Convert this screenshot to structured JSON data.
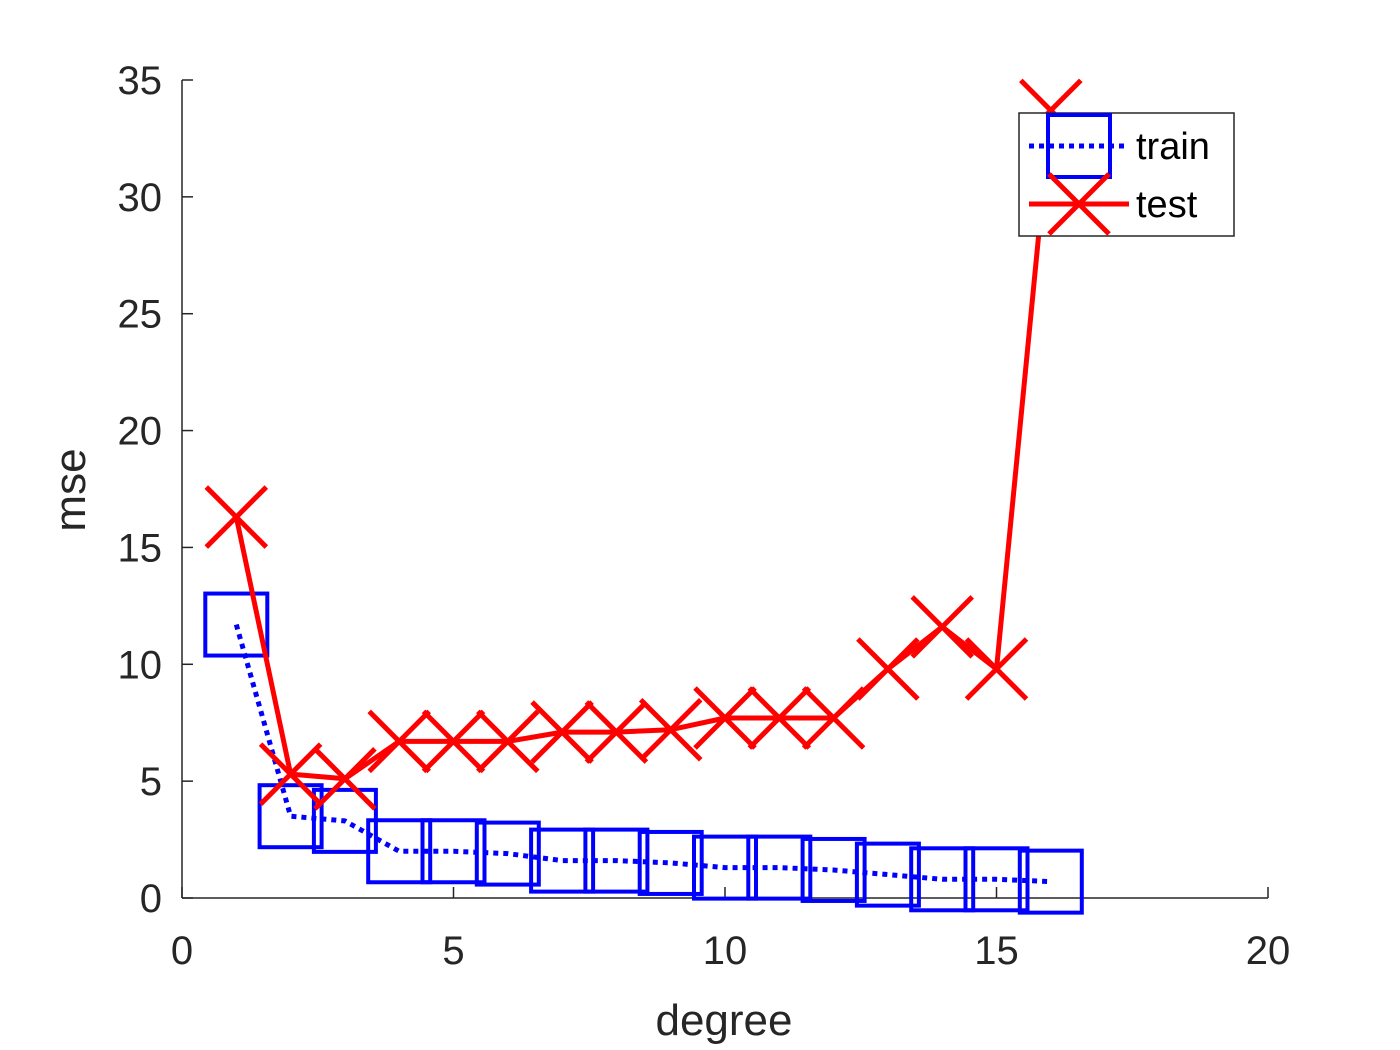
{
  "chart_data": {
    "type": "line",
    "xlabel": "degree",
    "ylabel": "mse",
    "xlim": [
      0,
      20
    ],
    "ylim": [
      0,
      35
    ],
    "xticks": [
      0,
      5,
      10,
      15,
      20
    ],
    "yticks": [
      0,
      5,
      10,
      15,
      20,
      25,
      30,
      35
    ],
    "grid": false,
    "legend_position": "top-right",
    "series": [
      {
        "name": "train",
        "color": "#0000ff",
        "line_style": "dotted",
        "marker": "square",
        "x": [
          1,
          2,
          3,
          4,
          5,
          6,
          7,
          8,
          9,
          10,
          11,
          12,
          13,
          14,
          15,
          16
        ],
        "y": [
          11.7,
          3.5,
          3.3,
          2.0,
          2.0,
          1.9,
          1.6,
          1.6,
          1.5,
          1.3,
          1.3,
          1.2,
          1.0,
          0.8,
          0.8,
          0.7
        ]
      },
      {
        "name": "test",
        "color": "#ff0000",
        "line_style": "solid",
        "marker": "x",
        "x": [
          1,
          2,
          3,
          4,
          5,
          6,
          7,
          8,
          9,
          10,
          11,
          12,
          13,
          14,
          15,
          16
        ],
        "y": [
          16.3,
          5.3,
          5.1,
          6.7,
          6.7,
          6.7,
          7.1,
          7.1,
          7.2,
          7.7,
          7.7,
          7.7,
          9.8,
          11.6,
          9.8,
          33.7
        ]
      }
    ]
  }
}
